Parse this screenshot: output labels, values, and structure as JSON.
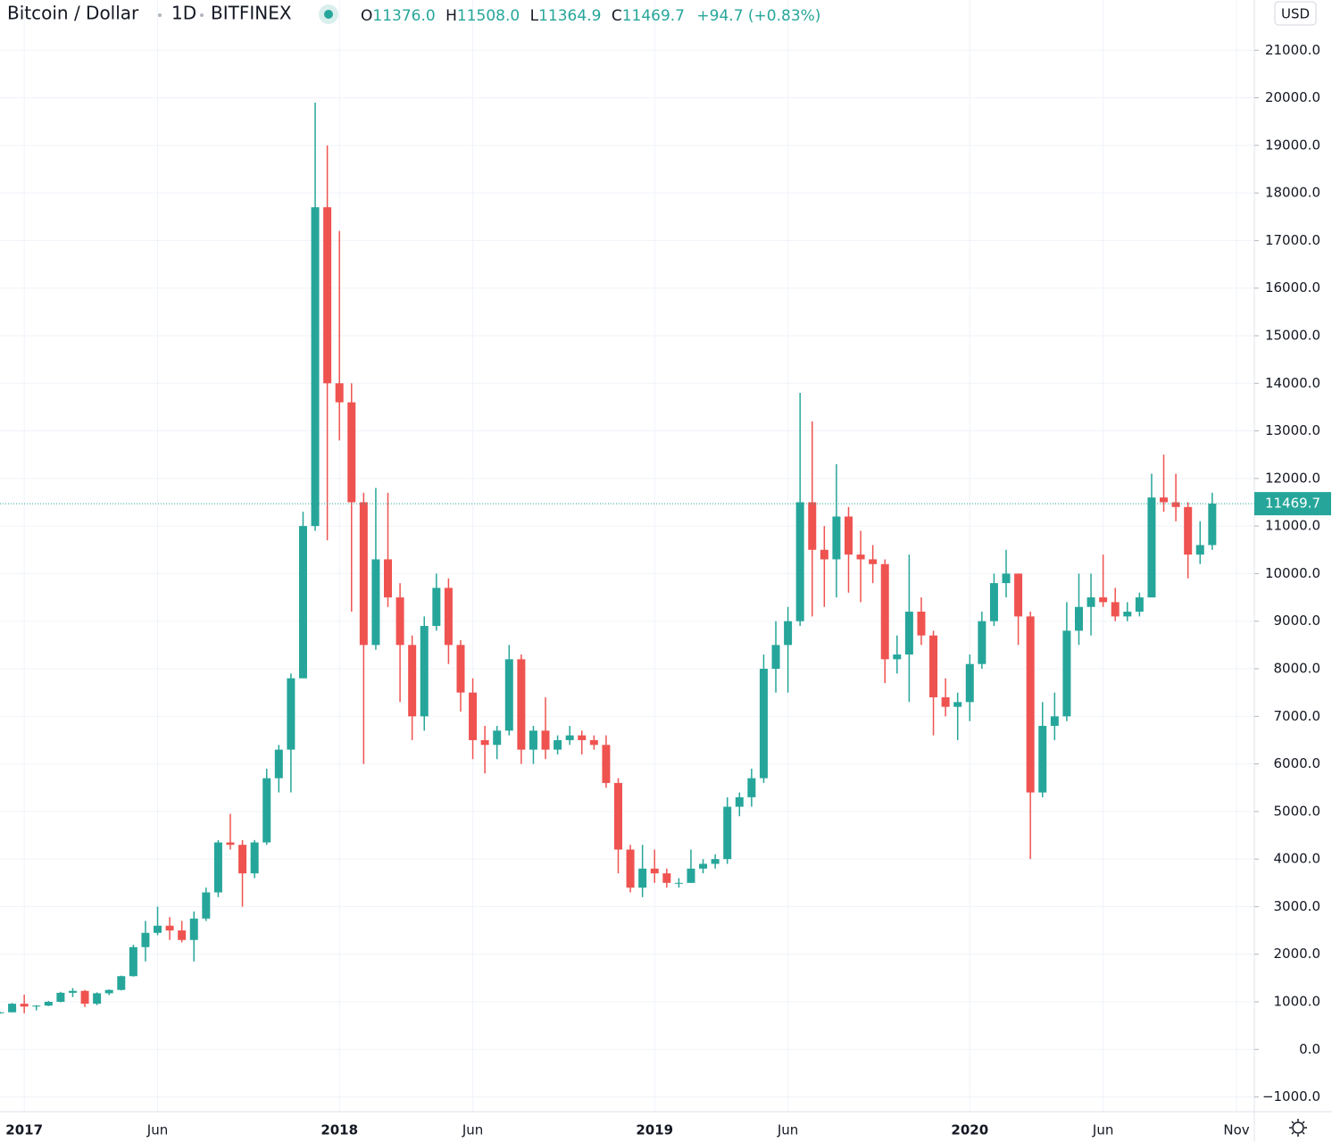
{
  "chart_data": {
    "type": "candlestick",
    "title": "Bitcoin / Dollar",
    "interval": "1D",
    "exchange": "BITFINEX",
    "legend": {
      "o_label": "O",
      "o": "11376.0",
      "h_label": "H",
      "h": "11508.0",
      "l_label": "L",
      "l": "11364.9",
      "c_label": "C",
      "c": "11469.7",
      "change": "+94.7 (+0.83%)"
    },
    "currency": "USD",
    "last_price": 11469.7,
    "up_color": "#26a69a",
    "down_color": "#ef5350",
    "categories": [
      null,
      null,
      "2017",
      null,
      null,
      null,
      null,
      null,
      null,
      null,
      null,
      null,
      null,
      "Jun",
      null,
      null,
      null,
      null,
      null,
      null,
      null,
      null,
      null,
      null,
      null,
      null,
      null,
      null,
      "2018",
      null,
      null,
      null,
      null,
      null,
      null,
      null,
      null,
      null,
      null,
      "Jun",
      null,
      null,
      null,
      null,
      null,
      null,
      null,
      null,
      null,
      null,
      null,
      null,
      null,
      null,
      "2019",
      null,
      null,
      null,
      null,
      null,
      null,
      null,
      null,
      null,
      null,
      "Jun",
      null,
      null,
      null,
      null,
      null,
      null,
      null,
      null,
      null,
      null,
      null,
      null,
      null,
      null,
      "2020",
      null,
      null,
      null,
      null,
      null,
      null,
      null,
      null,
      null,
      null,
      "Jun",
      null,
      null,
      null,
      null,
      null,
      null,
      null,
      null,
      null,
      null,
      "Nov"
    ],
    "open": [
      760,
      780,
      960,
      900,
      920,
      1000,
      1190,
      1230,
      960,
      1180,
      1250,
      1540,
      2150,
      2450,
      2600,
      2500,
      2300,
      2750,
      3300,
      4350,
      4300,
      3700,
      4350,
      5700,
      6300,
      7800,
      11000,
      17700,
      14000,
      13600,
      11500,
      8500,
      10300,
      9500,
      8500,
      7000,
      8900,
      9700,
      8500,
      7500,
      6500,
      6400,
      6700,
      8200,
      6300,
      6700,
      6300,
      6500,
      6600,
      6500,
      6400,
      5600,
      4200,
      3400,
      3800,
      3700,
      3500,
      3500,
      3800,
      3900,
      4000,
      5100,
      5300,
      5700,
      8000,
      8500,
      9000,
      11500,
      10500,
      10300,
      11200,
      10400,
      10300,
      10200,
      8200,
      8300,
      9200,
      8700,
      7400,
      7200,
      7300,
      8100,
      9000,
      9800,
      10000,
      9100,
      5400,
      6800,
      7000,
      8800,
      9300,
      9500,
      9400,
      9100,
      9200,
      9500,
      11600,
      11500,
      11400,
      10400,
      10600,
      null,
      null
    ],
    "high": [
      790,
      975,
      1150,
      930,
      1020,
      1210,
      1290,
      1250,
      1200,
      1260,
      1550,
      2200,
      2700,
      3000,
      2780,
      2700,
      2900,
      3400,
      4400,
      4950,
      4400,
      4400,
      5900,
      6400,
      7900,
      11300,
      19900,
      19000,
      17200,
      14000,
      11700,
      11800,
      11700,
      9800,
      8700,
      9100,
      10000,
      9900,
      8600,
      7800,
      6800,
      6800,
      8500,
      8300,
      6800,
      7400,
      6600,
      6800,
      6700,
      6600,
      6600,
      5700,
      4300,
      4300,
      4200,
      3800,
      3600,
      4200,
      4000,
      4100,
      5300,
      5400,
      5900,
      8300,
      9000,
      9300,
      13800,
      13200,
      11000,
      12300,
      11400,
      10900,
      10600,
      10300,
      8700,
      10400,
      9500,
      8800,
      7800,
      7500,
      8300,
      9200,
      10000,
      10500,
      10000,
      9200,
      7300,
      7500,
      9400,
      10000,
      10000,
      10400,
      9700,
      9400,
      9600,
      12100,
      12500,
      12100,
      11500,
      11100,
      11700,
      null,
      null
    ],
    "low": [
      750,
      780,
      760,
      820,
      910,
      990,
      1100,
      890,
      930,
      1140,
      1240,
      1530,
      1850,
      2400,
      2300,
      2250,
      1850,
      2700,
      3200,
      4200,
      3000,
      3600,
      4300,
      5400,
      5400,
      7800,
      10900,
      10700,
      12800,
      9200,
      6000,
      8400,
      9300,
      7300,
      6500,
      6700,
      8800,
      8100,
      7100,
      6100,
      5800,
      6100,
      6600,
      6000,
      6000,
      6100,
      6200,
      6400,
      6200,
      6300,
      5500,
      3700,
      3300,
      3200,
      3500,
      3400,
      3400,
      3500,
      3700,
      3800,
      3900,
      4900,
      5100,
      5600,
      7500,
      7500,
      8900,
      9100,
      9300,
      9500,
      9600,
      9400,
      9800,
      7700,
      7900,
      7300,
      8500,
      6600,
      7000,
      6500,
      6900,
      8000,
      8900,
      9500,
      8500,
      4000,
      5300,
      6500,
      6900,
      8500,
      8700,
      9300,
      9000,
      9000,
      9100,
      9500,
      11300,
      11100,
      9900,
      10200,
      10500,
      null,
      null
    ],
    "close": [
      780,
      960,
      900,
      920,
      1000,
      1190,
      1230,
      960,
      1180,
      1250,
      1540,
      2150,
      2450,
      2600,
      2500,
      2300,
      2750,
      3300,
      4350,
      4300,
      3700,
      4350,
      5700,
      6300,
      7800,
      11000,
      17700,
      14000,
      13600,
      11500,
      8500,
      10300,
      9500,
      8500,
      7000,
      8900,
      9700,
      8500,
      7500,
      6500,
      6400,
      6700,
      8200,
      6300,
      6700,
      6300,
      6500,
      6600,
      6500,
      6400,
      5600,
      4200,
      3400,
      3800,
      3700,
      3500,
      3500,
      3800,
      3900,
      4000,
      5100,
      5300,
      5700,
      8000,
      8500,
      9000,
      11500,
      10500,
      10300,
      11200,
      10400,
      10300,
      10200,
      8200,
      8300,
      9200,
      8700,
      7400,
      7200,
      7300,
      8100,
      9000,
      9800,
      10000,
      9100,
      5400,
      6800,
      7000,
      8800,
      9300,
      9500,
      9400,
      9100,
      9200,
      9500,
      11600,
      11500,
      11400,
      10400,
      10600,
      11470,
      null,
      null
    ],
    "ylim": [
      -1308,
      22056
    ],
    "yticks": [
      {
        "value": -1000,
        "label": "−1000.0"
      },
      {
        "value": 0,
        "label": "0.0"
      },
      {
        "value": 1000,
        "label": "1000.0"
      },
      {
        "value": 2000,
        "label": "2000.0"
      },
      {
        "value": 3000,
        "label": "3000.0"
      },
      {
        "value": 4000,
        "label": "4000.0"
      },
      {
        "value": 5000,
        "label": "5000.0"
      },
      {
        "value": 6000,
        "label": "6000.0"
      },
      {
        "value": 7000,
        "label": "7000.0"
      },
      {
        "value": 8000,
        "label": "8000.0"
      },
      {
        "value": 9000,
        "label": "9000.0"
      },
      {
        "value": 10000,
        "label": "10000.0"
      },
      {
        "value": 11000,
        "label": "11000.0"
      },
      {
        "value": 12000,
        "label": "12000.0"
      },
      {
        "value": 13000,
        "label": "13000.0"
      },
      {
        "value": 14000,
        "label": "14000.0"
      },
      {
        "value": 15000,
        "label": "15000.0"
      },
      {
        "value": 16000,
        "label": "16000.0"
      },
      {
        "value": 17000,
        "label": "17000.0"
      },
      {
        "value": 18000,
        "label": "18000.0"
      },
      {
        "value": 19000,
        "label": "19000.0"
      },
      {
        "value": 20000,
        "label": "20000.0"
      },
      {
        "value": 21000,
        "label": "21000.0"
      }
    ],
    "grid": true
  }
}
